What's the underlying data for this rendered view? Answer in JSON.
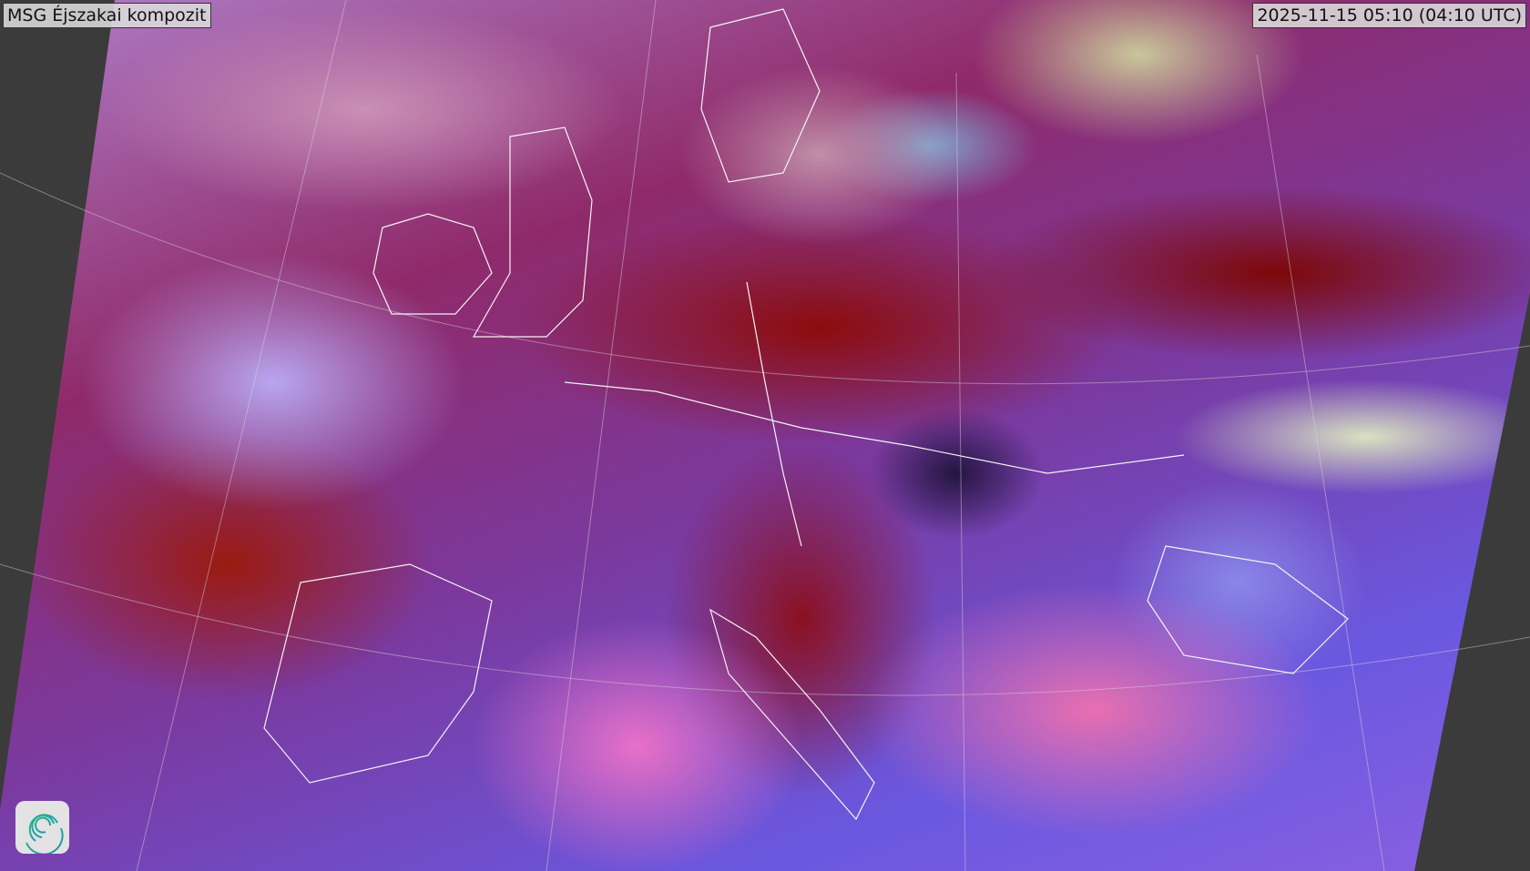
{
  "title": "MSG Éjszakai kompozit",
  "timestamp": "2025-11-15 05:10 (04:10 UTC)",
  "colors": {
    "background": "#3b3b3b",
    "label_bg": "#dcdcdc",
    "logo_accent": "#1fa59a"
  },
  "logo": {
    "icon": "spiral-logo-icon"
  }
}
